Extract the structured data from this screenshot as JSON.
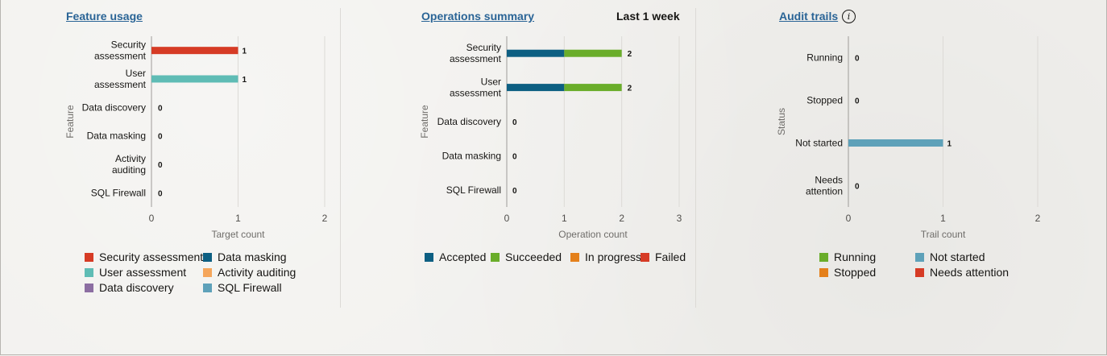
{
  "colors": {
    "red": "#d63b25",
    "teal": "#5fbcb5",
    "purple": "#8c6ea2",
    "darkblue": "#0d5f82",
    "orange": "#f5a65b",
    "steel": "#5ea1b9",
    "green": "#6aad2a",
    "amber": "#e4801b",
    "axis": "#9e9c99",
    "grid": "#dcdad6",
    "text": "#161513"
  },
  "panels": {
    "feature_usage": {
      "title": "Feature usage",
      "legend": [
        {
          "label": "Security assessment",
          "color": "#d63b25"
        },
        {
          "label": "User assessment",
          "color": "#5fbcb5"
        },
        {
          "label": "Data discovery",
          "color": "#8c6ea2"
        },
        {
          "label": "Data masking",
          "color": "#0d5f82"
        },
        {
          "label": "Activity auditing",
          "color": "#f5a65b"
        },
        {
          "label": "SQL Firewall",
          "color": "#5ea1b9"
        }
      ]
    },
    "operations_summary": {
      "title": "Operations summary",
      "range_label": "Last 1 week",
      "legend": [
        {
          "label": "Accepted",
          "color": "#0d5f82"
        },
        {
          "label": "Succeeded",
          "color": "#6aad2a"
        },
        {
          "label": "In progress",
          "color": "#e4801b"
        },
        {
          "label": "Failed",
          "color": "#d63b25"
        }
      ]
    },
    "audit_trails": {
      "title": "Audit trails",
      "info_icon": "info-icon",
      "legend": [
        {
          "label": "Running",
          "color": "#6aad2a"
        },
        {
          "label": "Stopped",
          "color": "#e4801b"
        },
        {
          "label": "Not started",
          "color": "#5ea1b9"
        },
        {
          "label": "Needs attention",
          "color": "#d63b25"
        }
      ]
    }
  },
  "chart_data": [
    {
      "type": "bar",
      "orientation": "horizontal",
      "title": "Feature usage",
      "xlabel": "Target count",
      "ylabel": "Feature",
      "xlim": [
        0,
        2
      ],
      "xticks": [
        "0",
        "1",
        "2"
      ],
      "categories": [
        [
          "Security",
          "assessment"
        ],
        [
          "User",
          "assessment"
        ],
        [
          "Data discovery"
        ],
        [
          "Data masking"
        ],
        [
          "Activity",
          "auditing"
        ],
        [
          "SQL Firewall"
        ]
      ],
      "values": [
        1,
        1,
        0,
        0,
        0,
        0
      ],
      "value_labels": [
        "1",
        "1",
        "0",
        "0",
        "0",
        "0"
      ],
      "colors": [
        "#d63b25",
        "#5fbcb5",
        "#8c6ea2",
        "#0d5f82",
        "#f5a65b",
        "#5ea1b9"
      ],
      "grid": true
    },
    {
      "type": "bar",
      "orientation": "horizontal",
      "stacked": true,
      "title": "Operations summary",
      "xlabel": "Operation count",
      "ylabel": "Feature",
      "xlim": [
        0,
        3
      ],
      "xticks": [
        "0",
        "1",
        "2",
        "3"
      ],
      "categories": [
        [
          "Security",
          "assessment"
        ],
        [
          "User",
          "assessment"
        ],
        [
          "Data discovery"
        ],
        [
          "Data masking"
        ],
        [
          "SQL Firewall"
        ]
      ],
      "series": [
        {
          "name": "Accepted",
          "color": "#0d5f82",
          "values": [
            1,
            1,
            0,
            0,
            0
          ]
        },
        {
          "name": "Succeeded",
          "color": "#6aad2a",
          "values": [
            1,
            1,
            0,
            0,
            0
          ]
        },
        {
          "name": "In progress",
          "color": "#e4801b",
          "values": [
            0,
            0,
            0,
            0,
            0
          ]
        },
        {
          "name": "Failed",
          "color": "#d63b25",
          "values": [
            0,
            0,
            0,
            0,
            0
          ]
        }
      ],
      "total_labels": [
        "2",
        "2",
        "0",
        "0",
        "0"
      ],
      "grid": true
    },
    {
      "type": "bar",
      "orientation": "horizontal",
      "title": "Audit trails",
      "xlabel": "Trail count",
      "ylabel": "Status",
      "xlim": [
        0,
        2
      ],
      "xticks": [
        "0",
        "1",
        "2"
      ],
      "categories": [
        [
          "Running"
        ],
        [
          "Stopped"
        ],
        [
          "Not started"
        ],
        [
          "Needs",
          "attention"
        ]
      ],
      "values": [
        0,
        0,
        1,
        0
      ],
      "value_labels": [
        "0",
        "0",
        "1",
        "0"
      ],
      "colors": [
        "#6aad2a",
        "#e4801b",
        "#5ea1b9",
        "#d63b25"
      ],
      "grid": true
    }
  ]
}
